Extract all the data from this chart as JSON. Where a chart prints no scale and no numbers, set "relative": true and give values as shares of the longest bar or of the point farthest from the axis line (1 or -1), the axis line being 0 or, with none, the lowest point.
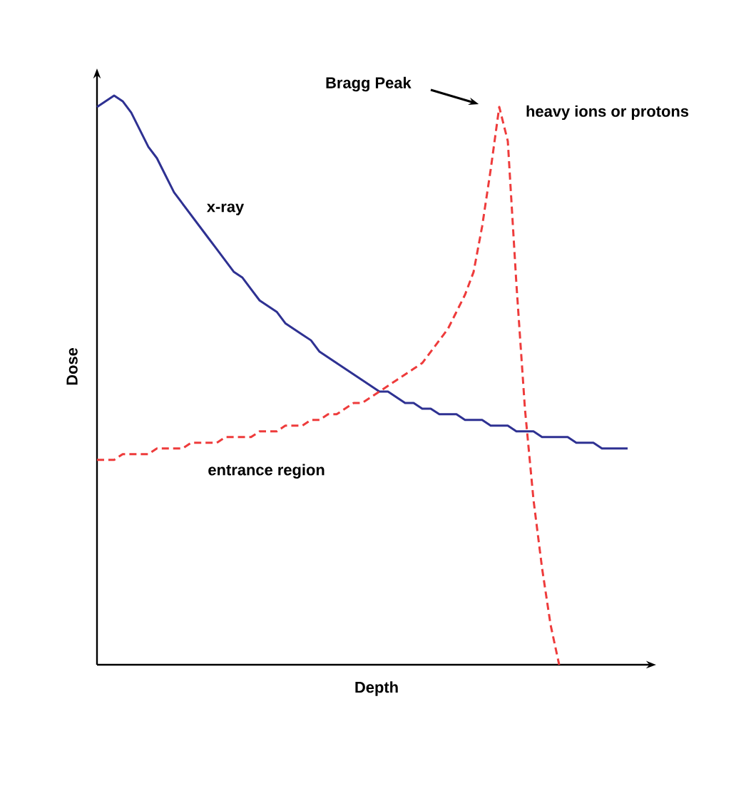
{
  "chart_data": {
    "type": "line",
    "relative": true,
    "xlabel": "Depth",
    "ylabel": "Dose",
    "marker": "none",
    "annotations": [
      "Bragg Peak",
      "entrance region"
    ],
    "categories": [
      null,
      null,
      null,
      null,
      null,
      null,
      null,
      null,
      null,
      null,
      null,
      null,
      null,
      null,
      null,
      null,
      null,
      null,
      null,
      null,
      null,
      null,
      null,
      null,
      null,
      null,
      null,
      null,
      null,
      null,
      null,
      null,
      null,
      null,
      null,
      null,
      null,
      null,
      null,
      null,
      null,
      null,
      null,
      null,
      null,
      null,
      null,
      null,
      null,
      null,
      null,
      null,
      null,
      null,
      null,
      null,
      null,
      null,
      null,
      null,
      null,
      null,
      null
    ],
    "series": [
      {
        "name": "x-ray",
        "color": "#2e3192",
        "line_style": "solid",
        "values": [
          0.98,
          0.99,
          1.0,
          0.99,
          0.97,
          0.94,
          0.91,
          0.89,
          0.86,
          0.83,
          0.81,
          0.79,
          0.77,
          0.75,
          0.73,
          0.71,
          0.69,
          0.68,
          0.66,
          0.64,
          0.63,
          0.62,
          0.6,
          0.59,
          0.58,
          0.57,
          0.55,
          0.54,
          0.53,
          0.52,
          0.51,
          0.5,
          0.49,
          0.48,
          0.48,
          0.47,
          0.46,
          0.46,
          0.45,
          0.45,
          0.44,
          0.44,
          0.44,
          0.43,
          0.43,
          0.43,
          0.42,
          0.42,
          0.42,
          0.41,
          0.41,
          0.41,
          0.4,
          0.4,
          0.4,
          0.4,
          0.39,
          0.39,
          0.39,
          0.38,
          0.38,
          0.38,
          0.38
        ]
      },
      {
        "name": "heavy ions or protons",
        "color": "#ee3b3b",
        "line_style": "dashed",
        "values": [
          0.36,
          0.36,
          0.36,
          0.37,
          0.37,
          0.37,
          0.37,
          0.38,
          0.38,
          0.38,
          0.38,
          0.39,
          0.39,
          0.39,
          0.39,
          0.4,
          0.4,
          0.4,
          0.4,
          0.41,
          0.41,
          0.41,
          0.42,
          0.42,
          0.42,
          0.43,
          0.43,
          0.44,
          0.44,
          0.45,
          0.46,
          0.46,
          0.47,
          0.48,
          0.49,
          0.5,
          0.51,
          0.52,
          0.53,
          0.55,
          0.57,
          0.59,
          0.62,
          0.65,
          0.69,
          0.77,
          0.87,
          0.98,
          0.92,
          0.67,
          0.45,
          0.29,
          0.17,
          0.07,
          0.0,
          null,
          null,
          null,
          null,
          null,
          null,
          null,
          null
        ]
      }
    ]
  }
}
